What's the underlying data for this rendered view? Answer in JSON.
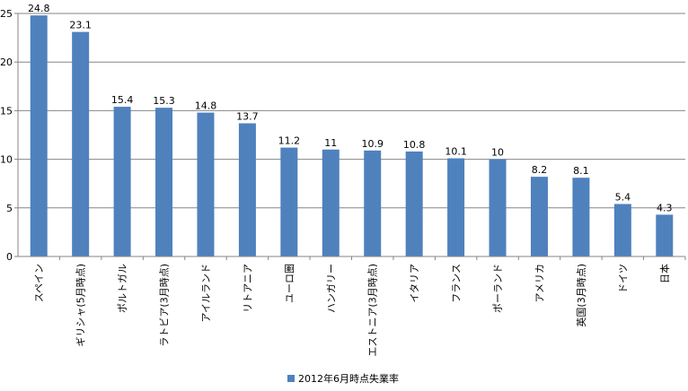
{
  "chart_data": {
    "type": "bar",
    "categories": [
      "スペイン",
      "ギリシャ(5月時点)",
      "ポルトガル",
      "ラトビア(3月時点)",
      "アイルランド",
      "リトアニア",
      "ユーロ圏",
      "ハンガリー",
      "エストニア(3月時点)",
      "イタリア",
      "フランス",
      "ポーランド",
      "アメリカ",
      "英国(3月時点)",
      "ドイツ",
      "日本"
    ],
    "series": [
      {
        "name": "2012年6月時点失業率",
        "values": [
          24.8,
          23.1,
          15.4,
          15.3,
          14.8,
          13.7,
          11.2,
          11,
          10.9,
          10.8,
          10.1,
          10,
          8.2,
          8.1,
          5.4,
          4.3
        ],
        "labels": [
          "24.8",
          "23.1",
          "15.4",
          "15.3",
          "14.8",
          "13.7",
          "11.2",
          "11",
          "10.9",
          "10.8",
          "10.1",
          "10",
          "8.2",
          "8.1",
          "5.4",
          "4.3"
        ],
        "color": "#4f81bd"
      }
    ],
    "yticks": [
      "0",
      "5",
      "10",
      "15",
      "20",
      "25"
    ],
    "ylim": [
      0,
      25
    ],
    "title": "",
    "xlabel": "",
    "ylabel": "",
    "grid": true,
    "legend_position": "bottom",
    "colors": {
      "bar": "#4f81bd",
      "grid": "#868686",
      "axis": "#868686"
    }
  }
}
